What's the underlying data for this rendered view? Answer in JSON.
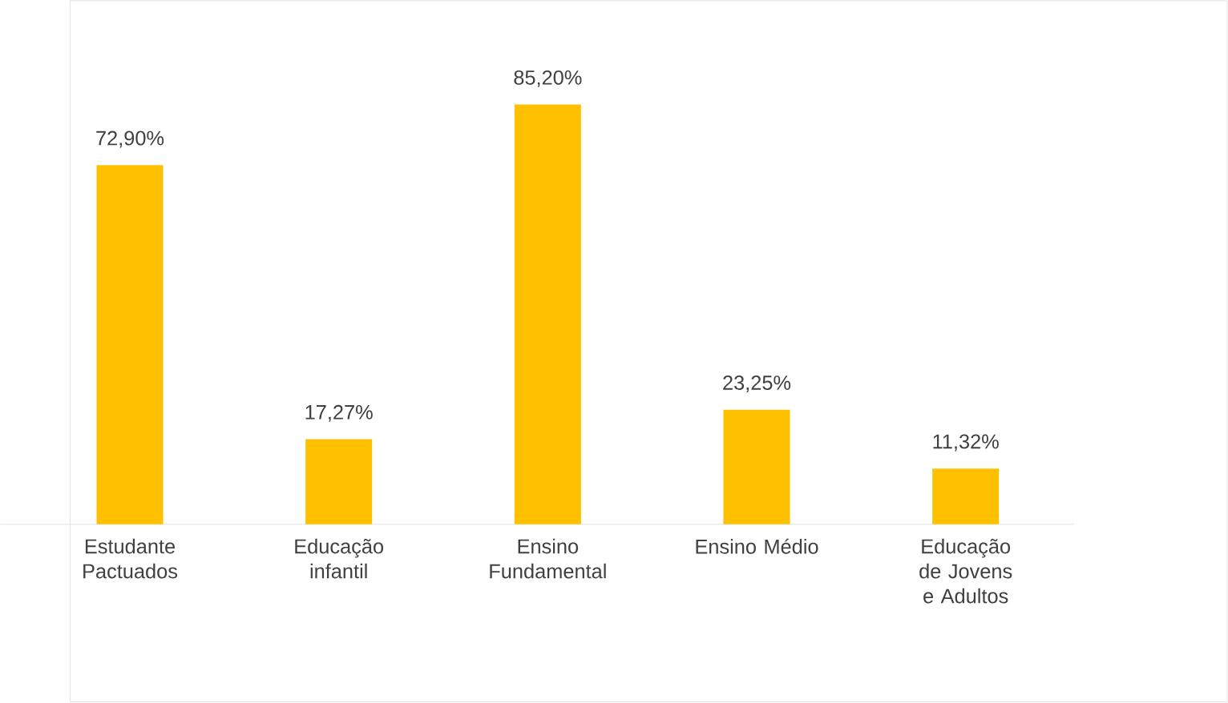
{
  "chart_data": {
    "type": "bar",
    "categories": [
      "Estudante Pactuados",
      "Educação infantil",
      "Ensino Fundamental",
      "Ensino Médio",
      "Educação de Jovens e Adultos"
    ],
    "values": [
      72.9,
      17.27,
      85.2,
      23.25,
      11.32
    ],
    "value_labels": [
      "72,90%",
      "17,27%",
      "85,20%",
      "23,25%",
      "11,32%"
    ],
    "color": "#ffc000"
  }
}
